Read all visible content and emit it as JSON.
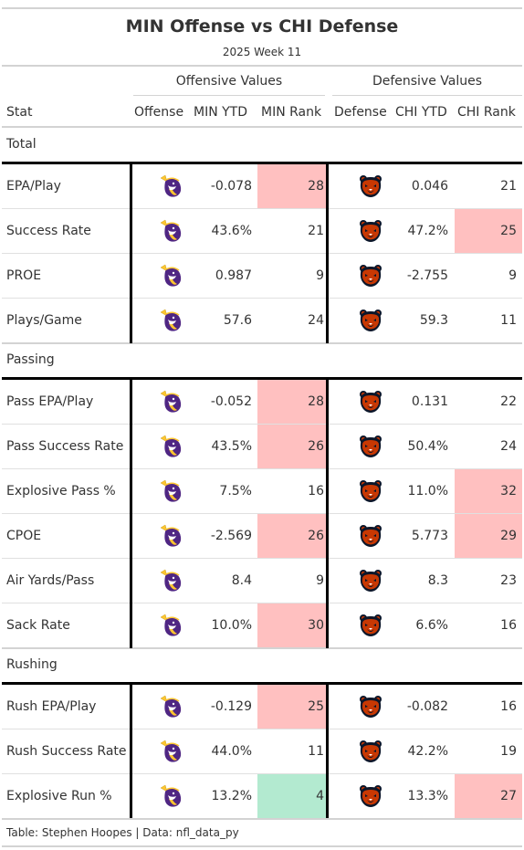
{
  "header": {
    "title": "MIN Offense vs CHI Defense",
    "subtitle": "2025 Week 11",
    "spanner_offense": "Offensive Values",
    "spanner_defense": "Defensive Values"
  },
  "columns": {
    "stat": "Stat",
    "offense": "Offense",
    "min_ytd": "MIN YTD",
    "min_rank": "MIN Rank",
    "defense": "Defense",
    "chi_ytd": "CHI YTD",
    "chi_rank": "CHI Rank"
  },
  "groups": [
    {
      "label": "Total",
      "rows": [
        {
          "stat": "EPA/Play",
          "min_ytd": "-0.078",
          "min_rank": "28",
          "chi_ytd": "0.046",
          "chi_rank": "21",
          "min_rank_color": "#ffc0c0",
          "chi_rank_color": ""
        },
        {
          "stat": "Success Rate",
          "min_ytd": "43.6%",
          "min_rank": "21",
          "chi_ytd": "47.2%",
          "chi_rank": "25",
          "min_rank_color": "",
          "chi_rank_color": "#ffc0c0"
        },
        {
          "stat": "PROE",
          "min_ytd": "0.987",
          "min_rank": "9",
          "chi_ytd": "-2.755",
          "chi_rank": "9",
          "min_rank_color": "",
          "chi_rank_color": ""
        },
        {
          "stat": "Plays/Game",
          "min_ytd": "57.6",
          "min_rank": "24",
          "chi_ytd": "59.3",
          "chi_rank": "11",
          "min_rank_color": "",
          "chi_rank_color": ""
        }
      ]
    },
    {
      "label": "Passing",
      "rows": [
        {
          "stat": "Pass EPA/Play",
          "min_ytd": "-0.052",
          "min_rank": "28",
          "chi_ytd": "0.131",
          "chi_rank": "22",
          "min_rank_color": "#ffc0c0",
          "chi_rank_color": ""
        },
        {
          "stat": "Pass Success Rate",
          "min_ytd": "43.5%",
          "min_rank": "26",
          "chi_ytd": "50.4%",
          "chi_rank": "24",
          "min_rank_color": "#ffc0c0",
          "chi_rank_color": ""
        },
        {
          "stat": "Explosive Pass %",
          "min_ytd": "7.5%",
          "min_rank": "16",
          "chi_ytd": "11.0%",
          "chi_rank": "32",
          "min_rank_color": "",
          "chi_rank_color": "#ffc0c0"
        },
        {
          "stat": "CPOE",
          "min_ytd": "-2.569",
          "min_rank": "26",
          "chi_ytd": "5.773",
          "chi_rank": "29",
          "min_rank_color": "#ffc0c0",
          "chi_rank_color": "#ffc0c0"
        },
        {
          "stat": "Air Yards/Pass",
          "min_ytd": "8.4",
          "min_rank": "9",
          "chi_ytd": "8.3",
          "chi_rank": "23",
          "min_rank_color": "",
          "chi_rank_color": ""
        },
        {
          "stat": "Sack Rate",
          "min_ytd": "10.0%",
          "min_rank": "30",
          "chi_ytd": "6.6%",
          "chi_rank": "16",
          "min_rank_color": "#ffc0c0",
          "chi_rank_color": ""
        }
      ]
    },
    {
      "label": "Rushing",
      "rows": [
        {
          "stat": "Rush EPA/Play",
          "min_ytd": "-0.129",
          "min_rank": "25",
          "chi_ytd": "-0.082",
          "chi_rank": "16",
          "min_rank_color": "#ffc0c0",
          "chi_rank_color": ""
        },
        {
          "stat": "Rush Success Rate",
          "min_ytd": "44.0%",
          "min_rank": "11",
          "chi_ytd": "42.2%",
          "chi_rank": "19",
          "min_rank_color": "",
          "chi_rank_color": ""
        },
        {
          "stat": "Explosive Run %",
          "min_ytd": "13.2%",
          "min_rank": "4",
          "chi_ytd": "13.3%",
          "chi_rank": "27",
          "min_rank_color": "#b3ead0",
          "chi_rank_color": "#ffc0c0"
        }
      ]
    }
  ],
  "icons": {
    "offense": "vikings-logo-icon",
    "defense": "bears-logo-icon"
  },
  "colors": {
    "bad_rank": "#ffc0c0",
    "good_rank": "#b3ead0",
    "vikings_purple": "#4f2683",
    "vikings_gold": "#ffc62f",
    "bears_orange": "#c83803",
    "bears_navy": "#0b162a"
  },
  "footer": "Table: Stephen Hoopes | Data: nfl_data_py"
}
